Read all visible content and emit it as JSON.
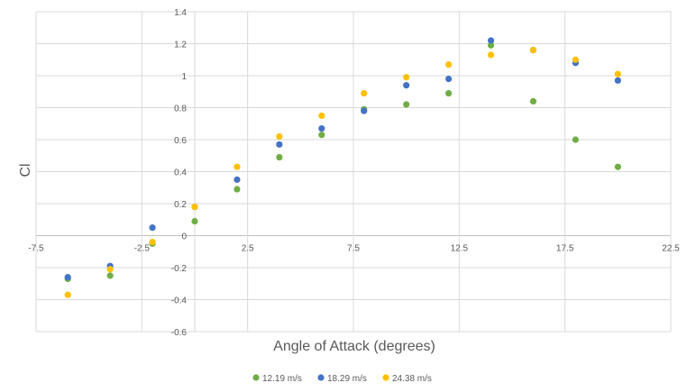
{
  "chart_data": {
    "type": "scatter",
    "title": "",
    "xlabel": "Angle of Attack (degrees)",
    "ylabel": "Cl",
    "xlim": [
      -7.5,
      22.5
    ],
    "ylim": [
      -0.6,
      1.4
    ],
    "xticks": [
      -7.5,
      -2.5,
      2.5,
      7.5,
      12.5,
      17.5,
      22.5
    ],
    "xtick_labels": [
      "-7.5",
      "-2.5",
      "2.5",
      "7.5",
      "12.5",
      "17.5",
      "22.5"
    ],
    "yticks": [
      -0.6,
      -0.4,
      -0.2,
      0,
      0.2,
      0.4,
      0.6,
      0.8,
      1,
      1.2,
      1.4
    ],
    "ytick_labels": [
      "-0.6",
      "-0.4",
      "-0.2",
      "0",
      "0.2",
      "0.4",
      "0.6",
      "0.8",
      "1",
      "1.2",
      "1.4"
    ],
    "grid": true,
    "legend_position": "bottom",
    "series": [
      {
        "name": "12.19 m/s",
        "color": "#70AD47",
        "x": [
          -6,
          -4,
          -2,
          0,
          2,
          4,
          6,
          8,
          10,
          12,
          14,
          16,
          18,
          20
        ],
        "y": [
          -0.27,
          -0.25,
          -0.05,
          0.09,
          0.29,
          0.49,
          0.63,
          0.79,
          0.82,
          0.89,
          1.19,
          0.84,
          0.6,
          0.43
        ]
      },
      {
        "name": "18.29 m/s",
        "color": "#4472C4",
        "x": [
          -6,
          -4,
          -2,
          0,
          2,
          4,
          6,
          8,
          10,
          12,
          14,
          16,
          18,
          20
        ],
        "y": [
          -0.26,
          -0.19,
          0.05,
          0.18,
          0.35,
          0.57,
          0.67,
          0.78,
          0.94,
          0.98,
          1.22,
          1.16,
          1.08,
          0.97
        ]
      },
      {
        "name": "24.38 m/s",
        "color": "#FFC000",
        "x": [
          -6,
          -4,
          -2,
          0,
          2,
          4,
          6,
          8,
          10,
          12,
          14,
          16,
          18,
          20
        ],
        "y": [
          -0.37,
          -0.21,
          -0.04,
          0.18,
          0.43,
          0.62,
          0.75,
          0.89,
          0.99,
          1.07,
          1.13,
          1.16,
          1.1,
          1.01
        ]
      }
    ]
  }
}
